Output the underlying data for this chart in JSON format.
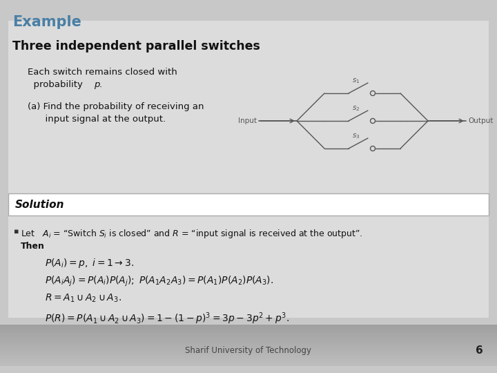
{
  "title": "Example",
  "title_color": "#4a7fa5",
  "slide_bg": "#c8c8c8",
  "content_bg": "#dcdcdc",
  "solution_bg": "#ffffff",
  "solution_label": "Solution",
  "heading": "Three independent parallel switches",
  "body_text_1a": "Each switch remains closed with",
  "body_text_1b": "  probability p.",
  "body_text_2a": "(a) Find the probability of receiving an",
  "body_text_2b": "      input signal at the output.",
  "footer": "Sharif University of Technology",
  "page_number": "6"
}
